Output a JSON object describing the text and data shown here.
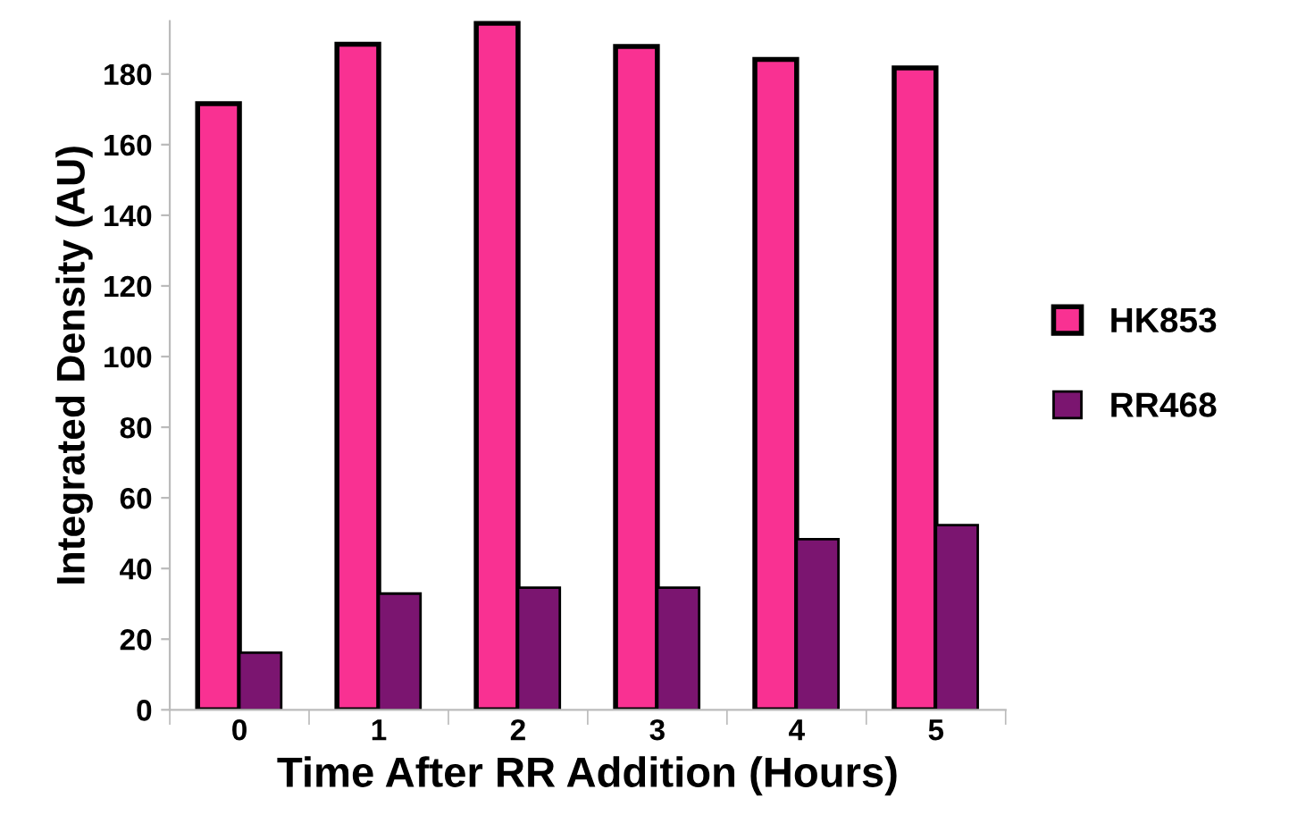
{
  "chart_data": {
    "type": "bar",
    "xlabel": "Time After RR Addition (Hours)",
    "ylabel": "Integrated Density (AU)",
    "categories": [
      "0",
      "1",
      "2",
      "3",
      "4",
      "5"
    ],
    "series": [
      {
        "name": "HK853",
        "color": "#f93192",
        "values": [
          171.6,
          188.4,
          194.4,
          187.8,
          184.1,
          181.7
        ]
      },
      {
        "name": "RR468",
        "color": "#7b1570",
        "values": [
          16.2,
          32.9,
          34.6,
          34.6,
          48.3,
          52.3
        ]
      }
    ],
    "ylim": [
      0,
      195
    ],
    "yticks": [
      0,
      20,
      40,
      60,
      80,
      100,
      120,
      140,
      160,
      180
    ],
    "grid": false,
    "legend": "right"
  }
}
